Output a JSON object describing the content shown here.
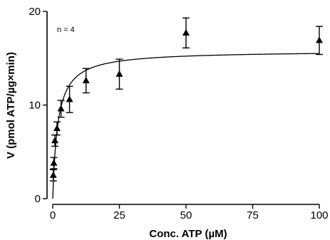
{
  "chart_data": {
    "type": "scatter",
    "xlabel": "Conc. ATP (µM)",
    "ylabel": "V (pmol ATP/µg×min)",
    "annotation": "n = 4",
    "xlim": [
      0,
      100
    ],
    "ylim": [
      0,
      20
    ],
    "x_ticks": [
      "0",
      "25",
      "50",
      "75",
      "100"
    ],
    "y_ticks": [
      "0",
      "10",
      "20"
    ],
    "x_tick_values": [
      0,
      25,
      50,
      75,
      100
    ],
    "y_tick_values": [
      0,
      10,
      20
    ],
    "marker": "triangle",
    "color": "#000000",
    "series": [
      {
        "x": [
          0.2,
          0.4,
          0.8,
          1.6,
          3.1,
          6.3,
          12.5,
          25,
          50,
          100
        ],
        "y": [
          2.5,
          3.8,
          6.2,
          7.5,
          9.6,
          10.6,
          12.6,
          13.3,
          17.7,
          16.9
        ],
        "error": [
          0.6,
          0.6,
          0.6,
          0.7,
          0.9,
          1.4,
          1.3,
          1.6,
          1.6,
          1.5
        ]
      }
    ],
    "fit": {
      "model": "michaelis-menten",
      "vmax": 15.8,
      "km": 1.9
    }
  }
}
